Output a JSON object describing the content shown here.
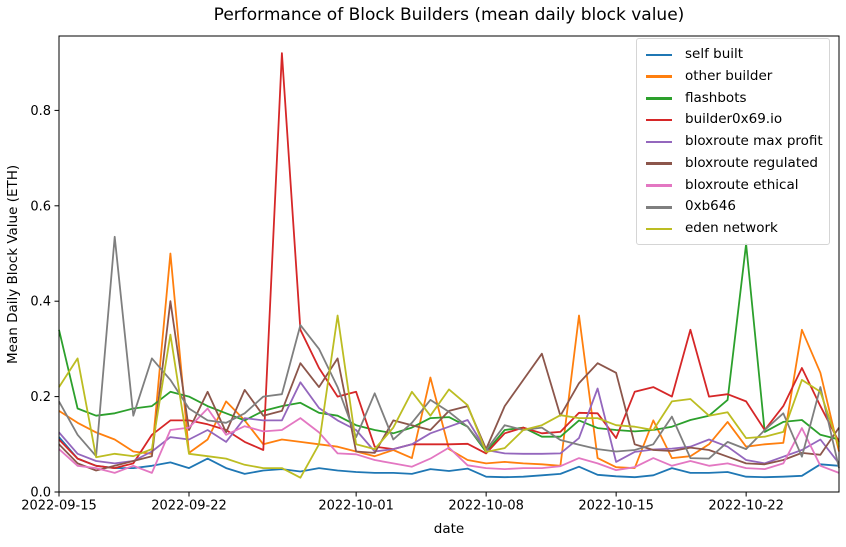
{
  "chart_data": {
    "type": "line",
    "title": "Performance of Block Builders (mean daily block value)",
    "xlabel": "date",
    "ylabel": "Mean Daily Block Value (ETH)",
    "grid": false,
    "legend_position": "upper right",
    "ylim": [
      0,
      0.956
    ],
    "y_ticks": [
      0.0,
      0.2,
      0.4,
      0.6,
      0.8
    ],
    "y_tick_labels": [
      "0.0",
      "0.2",
      "0.4",
      "0.6",
      "0.8"
    ],
    "x_tick_indices": [
      0,
      7,
      16,
      23,
      30,
      37
    ],
    "x_tick_labels": [
      "2022-09-15",
      "2022-09-22",
      "2022-10-01",
      "2022-10-08",
      "2022-10-15",
      "2022-10-22"
    ],
    "colors": {
      "background": "#ffffff",
      "spine": "#000000",
      "text": "#000000",
      "legend_border": "#d5d5d5"
    },
    "x": [
      "2022-09-15",
      "2022-09-16",
      "2022-09-17",
      "2022-09-18",
      "2022-09-19",
      "2022-09-20",
      "2022-09-21",
      "2022-09-22",
      "2022-09-23",
      "2022-09-24",
      "2022-09-25",
      "2022-09-26",
      "2022-09-27",
      "2022-09-28",
      "2022-09-29",
      "2022-09-30",
      "2022-10-01",
      "2022-10-02",
      "2022-10-03",
      "2022-10-04",
      "2022-10-05",
      "2022-10-06",
      "2022-10-07",
      "2022-10-08",
      "2022-10-09",
      "2022-10-10",
      "2022-10-11",
      "2022-10-12",
      "2022-10-13",
      "2022-10-14",
      "2022-10-15",
      "2022-10-16",
      "2022-10-17",
      "2022-10-18",
      "2022-10-19",
      "2022-10-20",
      "2022-10-21",
      "2022-10-22",
      "2022-10-23",
      "2022-10-24",
      "2022-10-25",
      "2022-10-26",
      "2022-10-27"
    ],
    "series": [
      {
        "name": "self built",
        "color": "#1f77b4",
        "values": [
          0.115,
          0.07,
          0.055,
          0.05,
          0.05,
          0.055,
          0.062,
          0.05,
          0.07,
          0.05,
          0.038,
          0.045,
          0.048,
          0.043,
          0.05,
          0.045,
          0.042,
          0.04,
          0.04,
          0.038,
          0.048,
          0.044,
          0.049,
          0.032,
          0.031,
          0.032,
          0.035,
          0.038,
          0.053,
          0.036,
          0.033,
          0.031,
          0.035,
          0.05,
          0.04,
          0.04,
          0.042,
          0.032,
          0.031,
          0.032,
          0.034,
          0.058,
          0.055
        ]
      },
      {
        "name": "other builder",
        "color": "#ff7f0e",
        "values": [
          0.17,
          0.145,
          0.125,
          0.11,
          0.085,
          0.08,
          0.5,
          0.082,
          0.11,
          0.19,
          0.15,
          0.1,
          0.11,
          0.105,
          0.1,
          0.095,
          0.085,
          0.075,
          0.088,
          0.071,
          0.24,
          0.09,
          0.067,
          0.06,
          0.063,
          0.06,
          0.058,
          0.055,
          0.37,
          0.071,
          0.052,
          0.05,
          0.15,
          0.071,
          0.075,
          0.1,
          0.147,
          0.095,
          0.1,
          0.103,
          0.34,
          0.25,
          0.085
        ]
      },
      {
        "name": "flashbots",
        "color": "#2ca02c",
        "values": [
          0.34,
          0.175,
          0.16,
          0.165,
          0.175,
          0.18,
          0.21,
          0.2,
          0.18,
          0.165,
          0.15,
          0.17,
          0.18,
          0.187,
          0.166,
          0.16,
          0.14,
          0.13,
          0.123,
          0.135,
          0.155,
          0.157,
          0.137,
          0.084,
          0.13,
          0.135,
          0.116,
          0.116,
          0.15,
          0.134,
          0.13,
          0.127,
          0.13,
          0.137,
          0.151,
          0.16,
          0.193,
          0.52,
          0.126,
          0.147,
          0.151,
          0.12,
          0.11
        ]
      },
      {
        "name": "builder0x69.io",
        "color": "#d62728",
        "values": [
          0.11,
          0.07,
          0.055,
          0.05,
          0.06,
          0.12,
          0.15,
          0.15,
          0.142,
          0.13,
          0.105,
          0.088,
          0.92,
          0.34,
          0.26,
          0.2,
          0.21,
          0.095,
          0.09,
          0.1,
          0.1,
          0.1,
          0.101,
          0.081,
          0.123,
          0.135,
          0.123,
          0.126,
          0.166,
          0.165,
          0.113,
          0.21,
          0.22,
          0.2,
          0.34,
          0.2,
          0.205,
          0.19,
          0.13,
          0.18,
          0.26,
          0.18,
          0.105
        ]
      },
      {
        "name": "bloxroute max profit",
        "color": "#9467bd",
        "values": [
          0.125,
          0.08,
          0.065,
          0.06,
          0.065,
          0.085,
          0.115,
          0.11,
          0.13,
          0.105,
          0.155,
          0.15,
          0.15,
          0.23,
          0.176,
          0.15,
          0.13,
          0.085,
          0.09,
          0.1,
          0.123,
          0.137,
          0.151,
          0.088,
          0.081,
          0.08,
          0.08,
          0.081,
          0.113,
          0.217,
          0.063,
          0.084,
          0.089,
          0.091,
          0.095,
          0.11,
          0.095,
          0.067,
          0.06,
          0.074,
          0.088,
          0.11,
          0.06
        ]
      },
      {
        "name": "bloxroute regulated",
        "color": "#8c564b",
        "values": [
          0.1,
          0.06,
          0.045,
          0.055,
          0.065,
          0.075,
          0.4,
          0.13,
          0.21,
          0.125,
          0.214,
          0.16,
          0.17,
          0.27,
          0.22,
          0.28,
          0.085,
          0.082,
          0.15,
          0.14,
          0.13,
          0.17,
          0.18,
          0.09,
          0.18,
          0.235,
          0.29,
          0.16,
          0.228,
          0.27,
          0.25,
          0.1,
          0.088,
          0.086,
          0.093,
          0.088,
          0.074,
          0.06,
          0.058,
          0.067,
          0.082,
          0.078,
          0.135
        ]
      },
      {
        "name": "bloxroute ethical",
        "color": "#e377c2",
        "values": [
          0.09,
          0.055,
          0.05,
          0.04,
          0.055,
          0.04,
          0.13,
          0.135,
          0.175,
          0.12,
          0.138,
          0.127,
          0.13,
          0.155,
          0.125,
          0.081,
          0.079,
          0.067,
          0.06,
          0.053,
          0.07,
          0.093,
          0.056,
          0.05,
          0.048,
          0.05,
          0.05,
          0.054,
          0.071,
          0.06,
          0.046,
          0.052,
          0.071,
          0.055,
          0.065,
          0.055,
          0.06,
          0.05,
          0.048,
          0.06,
          0.134,
          0.055,
          0.04
        ]
      },
      {
        "name": "0xb646",
        "color": "#7f7f7f",
        "values": [
          0.19,
          0.12,
          0.075,
          0.535,
          0.16,
          0.28,
          0.235,
          0.175,
          0.15,
          0.145,
          0.165,
          0.2,
          0.205,
          0.35,
          0.3,
          0.22,
          0.115,
          0.207,
          0.11,
          0.145,
          0.193,
          0.168,
          0.137,
          0.088,
          0.14,
          0.13,
          0.135,
          0.109,
          0.099,
          0.09,
          0.085,
          0.088,
          0.1,
          0.158,
          0.071,
          0.07,
          0.105,
          0.09,
          0.13,
          0.165,
          0.074,
          0.22,
          0.05
        ]
      },
      {
        "name": "eden network",
        "color": "#bcbd22",
        "values": [
          0.22,
          0.28,
          0.073,
          0.08,
          0.075,
          0.09,
          0.33,
          0.08,
          0.075,
          0.07,
          0.057,
          0.05,
          0.05,
          0.03,
          0.1,
          0.37,
          0.1,
          0.09,
          0.135,
          0.21,
          0.16,
          0.215,
          0.182,
          0.084,
          0.092,
          0.13,
          0.14,
          0.161,
          0.155,
          0.155,
          0.14,
          0.137,
          0.13,
          0.19,
          0.195,
          0.16,
          0.167,
          0.113,
          0.116,
          0.126,
          0.235,
          0.21,
          0.095
        ]
      }
    ]
  }
}
